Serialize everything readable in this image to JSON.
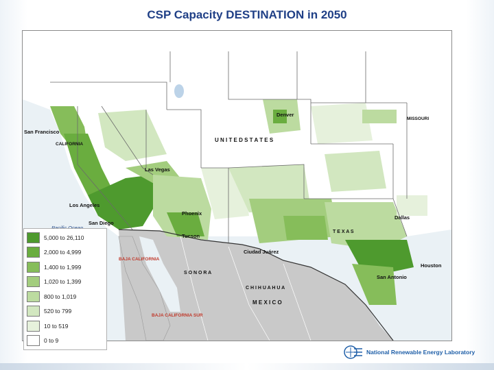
{
  "title": "CSP Capacity DESTINATION in 2050",
  "legend": {
    "items": [
      {
        "label": "5,000 to 26,110",
        "color": "#4e9a2e"
      },
      {
        "label": "2,000 to 4,999",
        "color": "#6aad3f"
      },
      {
        "label": "1,400 to 1,999",
        "color": "#86bd5a"
      },
      {
        "label": "1,020 to 1,399",
        "color": "#a3cd7e"
      },
      {
        "label": "800 to 1,019",
        "color": "#bcdba0"
      },
      {
        "label": "520 to 799",
        "color": "#d2e7c0"
      },
      {
        "label": "10 to 519",
        "color": "#e6f1dc"
      },
      {
        "label": "0 to 9",
        "color": "#ffffff"
      }
    ]
  },
  "places": {
    "san_francisco": "San Francisco",
    "los_angeles": "Los Angeles",
    "san_diego": "San Diego",
    "las_vegas": "Las Vegas",
    "phoenix": "Phoenix",
    "tucson": "Tucson",
    "ciudad_juarez": "Ciudad Juárez",
    "san_antonio": "San Antonio",
    "houston": "Houston",
    "dallas": "Dallas",
    "denver": "Denver",
    "united_states": "U N I T E D   S T A T E S",
    "mexico": "M E X I C O",
    "pacific_ocean": "Pacific Ocean",
    "california": "CALIFORNIA",
    "texas": "T E X A S",
    "missouri": "MISSOURI",
    "baja_california": "BAJA CALIFORNIA",
    "sonora": "S O N O R A",
    "chihuahua": "C H I H U A H U A",
    "baja_california_sur": "BAJA CALIFORNIA SUR"
  },
  "logo": {
    "text": "National Renewable Energy Laboratory"
  },
  "colors": {
    "title": "#1f3f86",
    "us_land": "#ffffff",
    "mexico_land": "#c9c9c9",
    "water": "#eaf1f5"
  }
}
